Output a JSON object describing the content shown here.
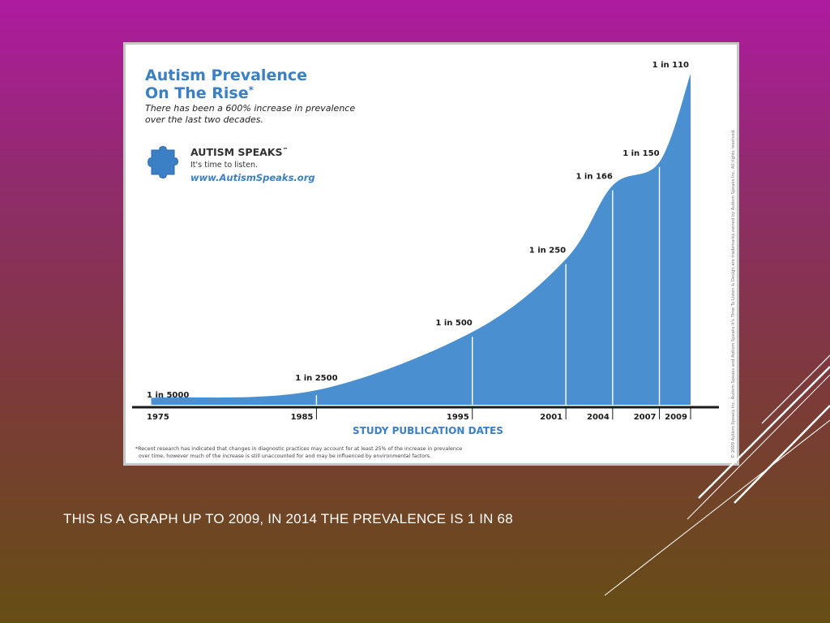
{
  "chart_data": {
    "type": "area",
    "title": "Autism Prevalence",
    "title_line2": "On The Rise",
    "title_mark": "*",
    "subtitle_line1": "There has been a 600% increase in prevalence",
    "subtitle_line2": "over the last two decades.",
    "xlabel": "STUDY PUBLICATION DATES",
    "x": [
      1975,
      1985,
      1995,
      2001,
      2004,
      2007,
      2009
    ],
    "tick_labels": [
      "1975",
      "1985",
      "1995",
      "2001",
      "2004",
      "2007",
      "2009"
    ],
    "point_labels": [
      "1 in 5000",
      "1 in 2500",
      "1 in 500",
      "1 in 250",
      "1 in 166",
      "1 in 150",
      "1 in 110"
    ],
    "prevalence_denominators": [
      5000,
      2500,
      500,
      250,
      166,
      150,
      110
    ],
    "footnote_line1": "*Recent research has indicated that changes in diagnostic practices may account for at least 25% of the increase in prevalence",
    "footnote_line2": "over time, however much of the increase is still unaccounted for and may be influenced by environmental factors.",
    "copyright": "© 2009 Autism Speaks Inc. Autism Speaks and Autism Speaks It's Time To Listen & Design are trademarks owned by Autism Speaks Inc. All rights reserved.",
    "area_color": "#4a8fcf",
    "grid": false
  },
  "logo": {
    "name": "AUTISM SPEAKS",
    "tm": "™",
    "tagline": "It's time to listen.",
    "url": "www.AutismSpeaks.org",
    "color": "#3b7fc4"
  },
  "caption": "THIS IS A GRAPH UP TO 2009, IN 2014 THE PREVALENCE IS 1 IN 68",
  "colors": {
    "title_blue": "#3b7fc4",
    "axis": "#1a1a1a",
    "background_top": "#ae1b9f",
    "background_bottom": "#654e14"
  }
}
